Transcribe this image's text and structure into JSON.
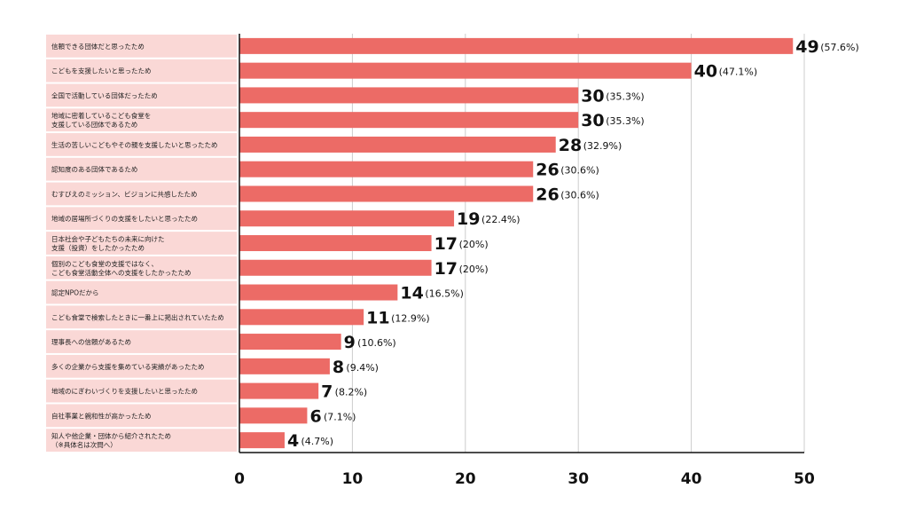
{
  "chart_data": {
    "type": "bar",
    "orientation": "horizontal",
    "title": "",
    "xlabel": "",
    "ylabel": "",
    "xlim": [
      0,
      50
    ],
    "xticks": [
      0,
      10,
      20,
      30,
      40,
      50
    ],
    "grid": true,
    "colors": {
      "bar": "#ec6b66",
      "label_bg": "#fad8d6",
      "grid": "#cccccc",
      "axis": "#111111"
    },
    "categories": [
      [
        "信頼できる団体だと思ったため"
      ],
      [
        "こどもを支援したいと思ったため"
      ],
      [
        "全国で活動している団体だったため"
      ],
      [
        "地域に密着しているこども食堂を",
        "支援している団体であるため"
      ],
      [
        "生活の苦しいこどもやその親を支援したいと思ったため"
      ],
      [
        "認知度のある団体であるため"
      ],
      [
        "むすびえのミッション、ビジョンに共感したため"
      ],
      [
        "地域の居場所づくりの支援をしたいと思ったため"
      ],
      [
        "日本社会や子どもたちの未来に向けた",
        "支援（投資）をしたかったため"
      ],
      [
        "個別のこども食堂の支援ではなく、",
        "こども食堂活動全体への支援をしたかったため"
      ],
      [
        "認定NPOだから"
      ],
      [
        "こども食堂で検索したときに一番上に掲出されていたため"
      ],
      [
        "理事長への信頼があるため"
      ],
      [
        "多くの企業から支援を集めている実績があったため"
      ],
      [
        "地域のにぎわいづくりを支援したいと思ったため"
      ],
      [
        "自社事業と親和性が高かったため"
      ],
      [
        "知人や他企業・団体から紹介されたため",
        "（※具体名は次問へ）"
      ]
    ],
    "values": [
      49,
      40,
      30,
      30,
      28,
      26,
      26,
      19,
      17,
      17,
      14,
      11,
      9,
      8,
      7,
      6,
      4
    ],
    "percent_labels": [
      "(57.6%)",
      "(47.1%)",
      "(35.3%)",
      "(35.3%)",
      "(32.9%)",
      "(30.6%)",
      "(30.6%)",
      "(22.4%)",
      "(20%)",
      "(20%)",
      "(16.5%)",
      "(12.9%)",
      "(10.6%)",
      "(9.4%)",
      "(8.2%)",
      "(7.1%)",
      "(4.7%)"
    ]
  }
}
